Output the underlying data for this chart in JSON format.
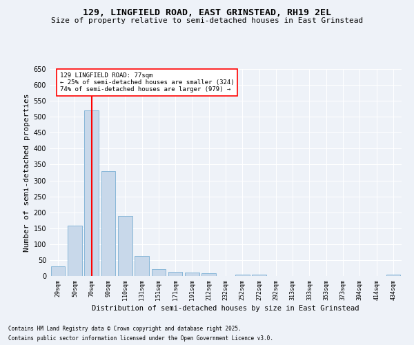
{
  "title1": "129, LINGFIELD ROAD, EAST GRINSTEAD, RH19 2EL",
  "title2": "Size of property relative to semi-detached houses in East Grinstead",
  "xlabel": "Distribution of semi-detached houses by size in East Grinstead",
  "ylabel": "Number of semi-detached properties",
  "categories": [
    "29sqm",
    "50sqm",
    "70sqm",
    "90sqm",
    "110sqm",
    "131sqm",
    "151sqm",
    "171sqm",
    "191sqm",
    "212sqm",
    "232sqm",
    "252sqm",
    "272sqm",
    "292sqm",
    "313sqm",
    "333sqm",
    "353sqm",
    "373sqm",
    "394sqm",
    "414sqm",
    "434sqm"
  ],
  "values": [
    30,
    158,
    520,
    330,
    188,
    62,
    22,
    14,
    11,
    8,
    0,
    5,
    5,
    0,
    0,
    0,
    0,
    0,
    0,
    0,
    5
  ],
  "bar_color": "#c8d8ea",
  "bar_edge_color": "#7aafd4",
  "vline_x_index": 2,
  "vline_color": "red",
  "annotation_title": "129 LINGFIELD ROAD: 77sqm",
  "annotation_line1": "← 25% of semi-detached houses are smaller (324)",
  "annotation_line2": "74% of semi-detached houses are larger (979) →",
  "annotation_box_color": "white",
  "annotation_box_edge": "red",
  "ylim": [
    0,
    650
  ],
  "yticks": [
    0,
    50,
    100,
    150,
    200,
    250,
    300,
    350,
    400,
    450,
    500,
    550,
    600,
    650
  ],
  "footnote1": "Contains HM Land Registry data © Crown copyright and database right 2025.",
  "footnote2": "Contains public sector information licensed under the Open Government Licence v3.0.",
  "bg_color": "#eef2f8",
  "plot_bg_color": "#eef2f8",
  "title_fontsize": 9.5,
  "subtitle_fontsize": 8,
  "ylabel_fontsize": 8,
  "xlabel_fontsize": 7.5,
  "ytick_fontsize": 7,
  "xtick_fontsize": 6
}
